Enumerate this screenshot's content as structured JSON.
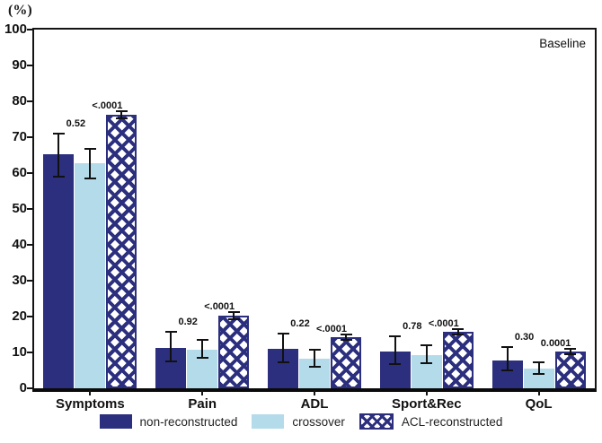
{
  "figure": {
    "unit_label": "(%)",
    "annotation": "Baseline"
  },
  "chart_data": {
    "type": "bar",
    "title": "",
    "xlabel": "",
    "ylabel": "(%)",
    "ylim": [
      0,
      100
    ],
    "ytick_step": 10,
    "grid": false,
    "legend_position": "bottom",
    "annotation": "Baseline",
    "categories": [
      "Symptoms",
      "Pain",
      "ADL",
      "Sport&Rec",
      "QoL"
    ],
    "series": [
      {
        "name": "non-reconstructed",
        "color": "#2b2f7d",
        "pattern": "solid"
      },
      {
        "name": "crossover",
        "color": "#b3dbea",
        "pattern": "solid"
      },
      {
        "name": "ACL-reconstructed",
        "color": "#2b2f7d",
        "pattern": "crosshatch"
      }
    ],
    "groups": [
      {
        "category": "Symptoms",
        "p_left": "0.52",
        "p_right": "<.0001",
        "values": [
          65.3,
          62.8,
          76.3
        ],
        "err_low": [
          59.0,
          58.5,
          75.2
        ],
        "err_high": [
          71.0,
          66.8,
          77.3
        ]
      },
      {
        "category": "Pain",
        "p_left": "0.92",
        "p_right": "<.0001",
        "values": [
          11.3,
          10.7,
          20.3
        ],
        "err_low": [
          7.5,
          8.5,
          19.3
        ],
        "err_high": [
          15.7,
          13.5,
          21.2
        ]
      },
      {
        "category": "ADL",
        "p_left": "0.22",
        "p_right": "<.0001",
        "values": [
          11.0,
          8.2,
          14.2
        ],
        "err_low": [
          7.2,
          6.0,
          13.4
        ],
        "err_high": [
          15.3,
          10.8,
          15.0
        ]
      },
      {
        "category": "Sport&Rec",
        "p_left": "0.78",
        "p_right": "<.0001",
        "values": [
          10.3,
          9.2,
          15.8
        ],
        "err_low": [
          6.8,
          7.0,
          14.9
        ],
        "err_high": [
          14.5,
          12.0,
          16.4
        ]
      },
      {
        "category": "QoL",
        "p_left": "0.30",
        "p_right": "0.0001",
        "values": [
          7.7,
          5.6,
          10.2
        ],
        "err_low": [
          5.0,
          3.9,
          9.5
        ],
        "err_high": [
          11.5,
          7.2,
          11.0
        ]
      }
    ]
  }
}
